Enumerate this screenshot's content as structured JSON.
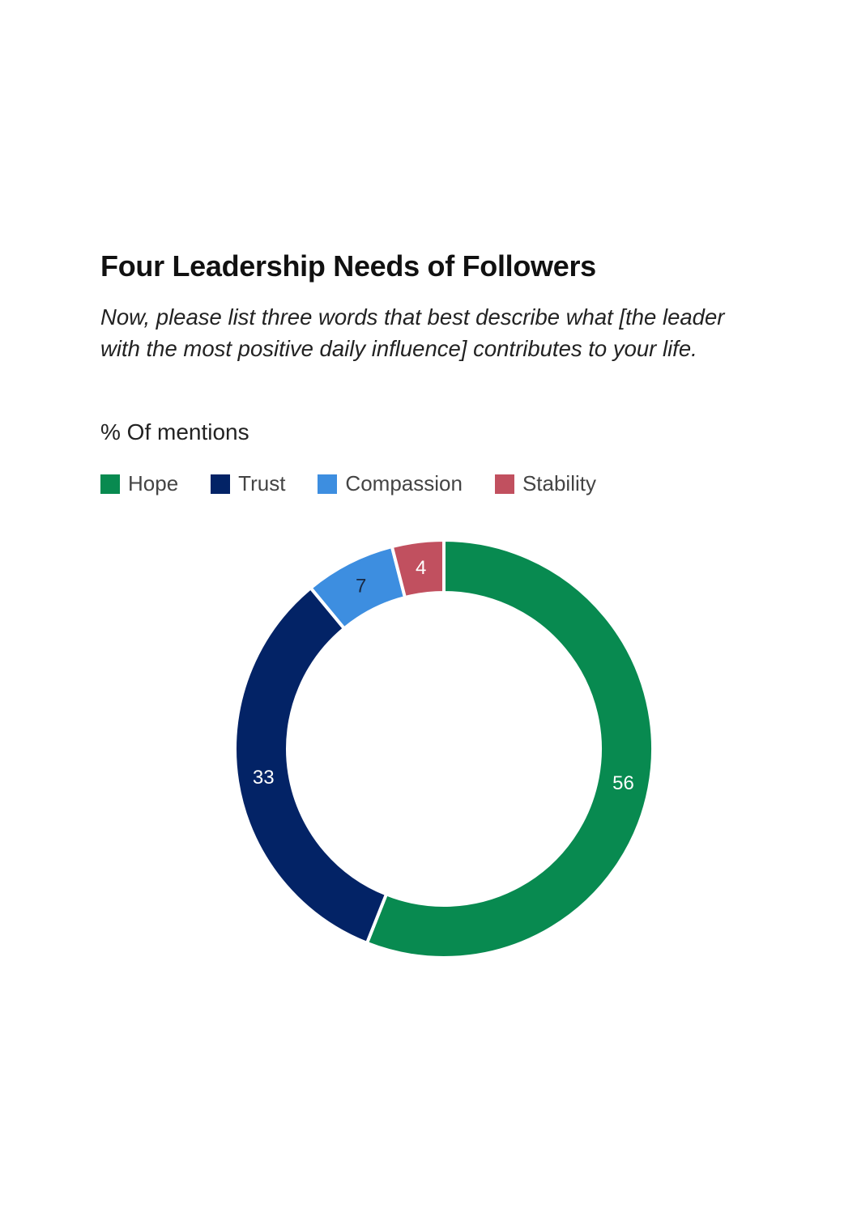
{
  "chart_data": {
    "type": "pie",
    "donut": true,
    "title": "Four Leadership Needs of Followers",
    "subtitle": "Now, please list three words that best describe what [the leader with the most positive daily influence] contributes to your life.",
    "unit_label": "% Of mentions",
    "legend_position": "top-left",
    "slices": [
      {
        "name": "Hope",
        "value": 56,
        "label": "56",
        "color": "#088a50",
        "label_color": "#ffffff"
      },
      {
        "name": "Trust",
        "value": 33,
        "label": "33",
        "color": "#032366",
        "label_color": "#ffffff"
      },
      {
        "name": "Compassion",
        "value": 7,
        "label": "7",
        "color": "#3d8ee0",
        "label_color": "#1a2a44"
      },
      {
        "name": "Stability",
        "value": 4,
        "label": "4",
        "color": "#c1505f",
        "label_color": "#ffffff"
      }
    ]
  }
}
